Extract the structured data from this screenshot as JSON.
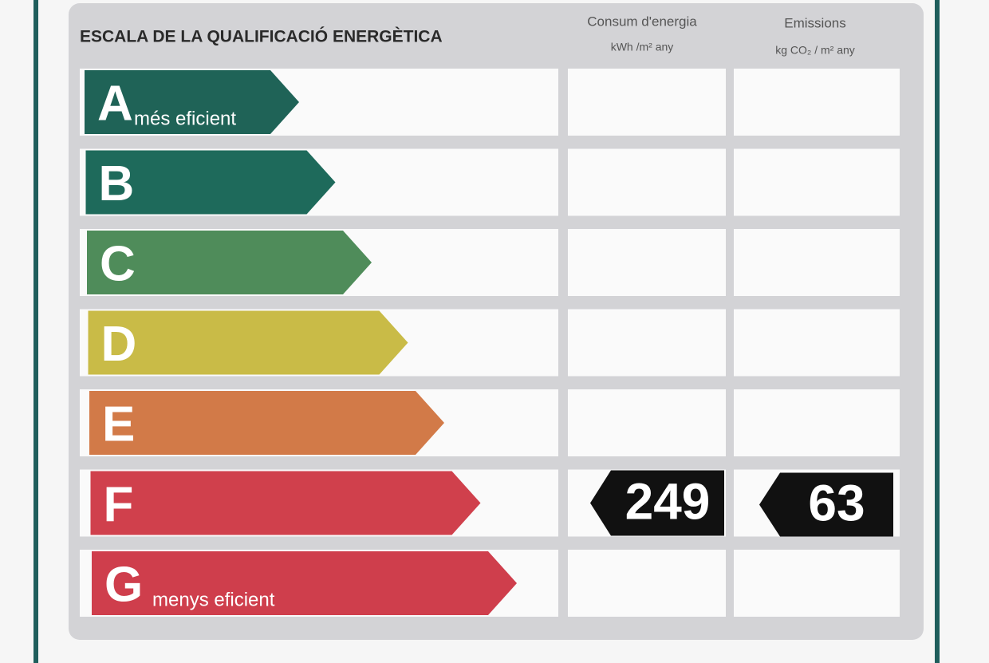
{
  "header": {
    "title": "ESCALA DE LA QUALIFICACIÓ ENERGÈTICA",
    "columns": [
      {
        "title": "Consum d'energia",
        "unit": "kWh /m² any"
      },
      {
        "title": "Emissions",
        "unit": "kg CO₂ / m² any"
      }
    ]
  },
  "scale": {
    "rows": [
      {
        "letter": "A",
        "caption": "més eficient",
        "color": "#1f6357"
      },
      {
        "letter": "B",
        "color": "#1e6a5b"
      },
      {
        "letter": "C",
        "color": "#4f8c5a"
      },
      {
        "letter": "D",
        "color": "#c9bb47"
      },
      {
        "letter": "E",
        "color": "#d27a48"
      },
      {
        "letter": "F",
        "color": "#d0404c",
        "consumption": 249,
        "emissions": 63
      },
      {
        "letter": "G",
        "caption": "menys eficient",
        "color": "#cf3e4c"
      }
    ]
  }
}
